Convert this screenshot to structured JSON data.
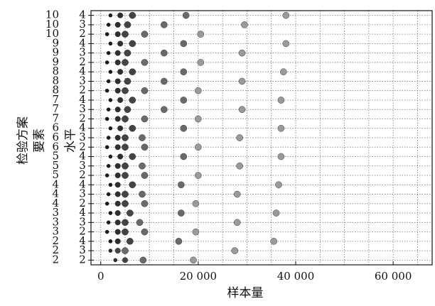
{
  "chart_data": {
    "type": "scatter",
    "title": "",
    "xlabel": "样本量",
    "ylabel_outer": "检验方案",
    "ylabel_mid": "要素",
    "ylabel_inner": "水平",
    "xlim": [
      -2000,
      68000
    ],
    "xticks": [
      0,
      20000,
      40000,
      60000
    ],
    "xtick_labels": [
      "0",
      "20 000",
      "40 000",
      "60 000"
    ],
    "grid": true,
    "rows": [
      {
        "factor": "2",
        "level": "2",
        "values": [
          3000,
          5000,
          8700,
          19000
        ]
      },
      {
        "factor": "2",
        "level": "3",
        "values": [
          2000,
          3500,
          5000,
          27500
        ]
      },
      {
        "factor": "2",
        "level": "4",
        "values": [
          2000,
          3500,
          6000,
          16000,
          35500
        ]
      },
      {
        "factor": "3",
        "level": "2",
        "values": [
          1300,
          3500,
          5000,
          9000,
          19500
        ]
      },
      {
        "factor": "3",
        "level": "3",
        "values": [
          1600,
          3500,
          5000,
          8000,
          28000
        ]
      },
      {
        "factor": "3",
        "level": "4",
        "values": [
          2000,
          3500,
          6000,
          16500,
          36000
        ]
      },
      {
        "factor": "4",
        "level": "2",
        "values": [
          1300,
          3500,
          5000,
          9000,
          19500
        ]
      },
      {
        "factor": "4",
        "level": "3",
        "values": [
          1600,
          3500,
          5000,
          8500,
          28000
        ]
      },
      {
        "factor": "4",
        "level": "4",
        "values": [
          2000,
          3500,
          6500,
          16500,
          36500
        ]
      },
      {
        "factor": "5",
        "level": "2",
        "values": [
          1300,
          3500,
          5000,
          9000,
          20000
        ]
      },
      {
        "factor": "5",
        "level": "3",
        "values": [
          1600,
          3500,
          5000,
          8500,
          28500
        ]
      },
      {
        "factor": "5",
        "level": "4",
        "values": [
          2000,
          4000,
          6500,
          17000,
          37000
        ]
      },
      {
        "factor": "6",
        "level": "2",
        "values": [
          1300,
          3500,
          5000,
          9000,
          20000
        ]
      },
      {
        "factor": "6",
        "level": "3",
        "values": [
          1600,
          3500,
          5000,
          8500,
          28500
        ]
      },
      {
        "factor": "6",
        "level": "4",
        "values": [
          2000,
          4000,
          6500,
          17000,
          37000
        ]
      },
      {
        "factor": "7",
        "level": "2",
        "values": [
          1300,
          3500,
          5000,
          9000,
          20000
        ]
      },
      {
        "factor": "7",
        "level": "3",
        "values": [
          1600,
          3500,
          5500,
          13000,
          29000
        ]
      },
      {
        "factor": "7",
        "level": "4",
        "values": [
          2000,
          4000,
          6500,
          17000,
          37000
        ]
      },
      {
        "factor": "8",
        "level": "2",
        "values": [
          1300,
          3500,
          5000,
          9000,
          20000
        ]
      },
      {
        "factor": "8",
        "level": "3",
        "values": [
          1600,
          3500,
          5500,
          13000,
          29000
        ]
      },
      {
        "factor": "8",
        "level": "4",
        "values": [
          2000,
          4000,
          6500,
          17000,
          37500
        ]
      },
      {
        "factor": "9",
        "level": "2",
        "values": [
          1300,
          3500,
          5000,
          9000,
          20500
        ]
      },
      {
        "factor": "9",
        "level": "3",
        "values": [
          1600,
          3500,
          5500,
          13000,
          29000
        ]
      },
      {
        "factor": "9",
        "level": "4",
        "values": [
          2000,
          4000,
          6500,
          17000,
          38000
        ]
      },
      {
        "factor": "10",
        "level": "2",
        "values": [
          1300,
          3500,
          5000,
          9000,
          20500
        ]
      },
      {
        "factor": "10",
        "level": "3",
        "values": [
          1600,
          3500,
          5500,
          13000,
          29500
        ]
      },
      {
        "factor": "10",
        "level": "4",
        "values": [
          2000,
          4000,
          6500,
          17500,
          38000
        ]
      }
    ],
    "marker_colors": [
      "#1a1a1a",
      "#2e2e2e",
      "#444444",
      "#6a6a6a",
      "#9a9a9a"
    ]
  }
}
